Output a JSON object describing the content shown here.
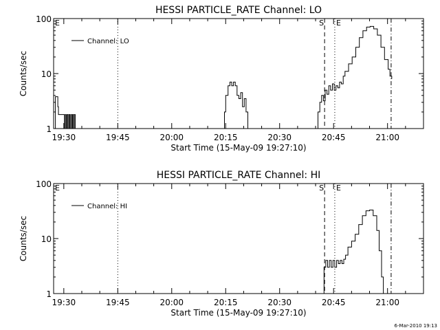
{
  "footer": {
    "date_stamp": "6-Mar-2010 19:13"
  },
  "chart_data": [
    {
      "type": "line",
      "title": "HESSI PARTICLE_RATE Channel: LO",
      "xlabel": "Start Time (15-May-09 19:27:10)",
      "ylabel": "Counts/sec",
      "yscale": "log",
      "ylim": [
        1,
        100
      ],
      "xlim": [
        "19:27:10",
        "21:10:00"
      ],
      "x_ticks": [
        "19:30",
        "19:45",
        "20:00",
        "20:15",
        "20:30",
        "20:45",
        "21:00"
      ],
      "y_ticks": [
        "1",
        "10",
        "100"
      ],
      "legend": {
        "label": "Channel: LO",
        "placement": "top-left"
      },
      "markers": [
        {
          "label": "E",
          "time": "19:27:10",
          "style": "solid"
        },
        {
          "label": "",
          "time": "19:45:00",
          "style": "dotted"
        },
        {
          "label": "S",
          "time": "20:42:30",
          "style": "dashed"
        },
        {
          "label": "E",
          "time": "20:45:20",
          "style": "dotted"
        },
        {
          "label": "",
          "time": "21:01:00",
          "style": "dashdot"
        }
      ],
      "series": [
        {
          "name": "Channel: LO",
          "x": [
            "19:27:10",
            "19:27:40",
            "19:28:20",
            "19:28:30",
            "19:30:00",
            "19:30:10",
            "19:30:25",
            "19:30:40",
            "19:30:55",
            "19:31:10",
            "19:31:25",
            "19:31:40",
            "19:31:55",
            "19:32:10",
            "19:32:25",
            "19:32:40",
            "19:32:55",
            "19:33:10",
            "20:14:10",
            "20:14:40",
            "20:15:00",
            "20:15:40",
            "20:16:10",
            "20:16:40",
            "20:17:10",
            "20:17:40",
            "20:18:10",
            "20:18:40",
            "20:19:10",
            "20:19:40",
            "20:20:10",
            "20:20:40",
            "20:21:10",
            "20:21:40",
            "20:22:20",
            "20:22:40",
            "20:23:10",
            "20:23:40",
            "20:24:10",
            "20:24:40",
            "20:25:10",
            "20:40:00",
            "20:40:40",
            "20:41:10",
            "20:41:40",
            "20:42:10",
            "20:42:40",
            "20:43:10",
            "20:43:40",
            "20:44:10",
            "20:44:40",
            "20:45:10",
            "20:45:40",
            "20:46:10",
            "20:46:40",
            "20:47:10",
            "20:47:40",
            "20:48:10",
            "20:49:10",
            "20:50:10",
            "20:51:10",
            "20:52:10",
            "20:53:10",
            "20:54:10",
            "20:55:10",
            "20:56:10",
            "20:57:10",
            "20:58:10",
            "20:59:10",
            "21:00:10",
            "21:00:40",
            "21:01:10"
          ],
          "values": [
            1,
            3.8,
            2.5,
            1.8,
            1.8,
            1,
            1.8,
            1,
            1.8,
            1,
            1.8,
            1,
            1.8,
            1,
            1.8,
            1,
            1.8,
            1,
            1,
            2,
            4,
            6,
            7,
            6,
            7,
            6,
            4,
            3.5,
            4.5,
            2.5,
            3.5,
            2,
            1,
            1,
            1,
            1,
            1,
            1,
            1,
            1,
            1,
            1,
            2,
            3,
            4,
            3.2,
            5,
            4.2,
            6,
            5,
            6.5,
            5,
            6,
            5.5,
            7,
            6.5,
            9,
            11,
            15,
            20,
            30,
            45,
            60,
            70,
            72,
            65,
            50,
            30,
            18,
            12,
            9,
            8
          ]
        }
      ]
    },
    {
      "type": "line",
      "title": "HESSI PARTICLE_RATE Channel: HI",
      "xlabel": "Start Time (15-May-09 19:27:10)",
      "ylabel": "Counts/sec",
      "yscale": "log",
      "ylim": [
        1,
        100
      ],
      "xlim": [
        "19:27:10",
        "21:10:00"
      ],
      "x_ticks": [
        "19:30",
        "19:45",
        "20:00",
        "20:15",
        "20:30",
        "20:45",
        "21:00"
      ],
      "y_ticks": [
        "1",
        "10",
        "100"
      ],
      "legend": {
        "label": "Channel: HI",
        "placement": "top-left"
      },
      "markers": [
        {
          "label": "E",
          "time": "19:27:10",
          "style": "solid"
        },
        {
          "label": "",
          "time": "19:45:00",
          "style": "dotted"
        },
        {
          "label": "S",
          "time": "20:42:30",
          "style": "dashed"
        },
        {
          "label": "E",
          "time": "20:45:20",
          "style": "dotted"
        },
        {
          "label": "",
          "time": "21:01:00",
          "style": "dashdot"
        }
      ],
      "series": [
        {
          "name": "Channel: HI",
          "x": [
            "20:41:40",
            "20:42:20",
            "20:42:50",
            "20:43:20",
            "20:43:50",
            "20:44:20",
            "20:44:50",
            "20:45:20",
            "20:45:50",
            "20:46:20",
            "20:46:50",
            "20:47:20",
            "20:47:50",
            "20:48:20",
            "20:49:00",
            "20:50:00",
            "20:51:00",
            "20:52:00",
            "20:53:00",
            "20:54:00",
            "20:55:00",
            "20:56:00",
            "20:57:00",
            "20:57:40",
            "20:58:20",
            "20:58:50"
          ],
          "values": [
            1,
            3,
            4,
            3,
            4,
            3,
            4,
            3,
            4,
            3.5,
            4,
            3.5,
            4.2,
            5,
            7,
            9,
            12,
            18,
            26,
            32,
            33,
            26,
            14,
            6,
            2,
            1
          ]
        }
      ]
    }
  ]
}
